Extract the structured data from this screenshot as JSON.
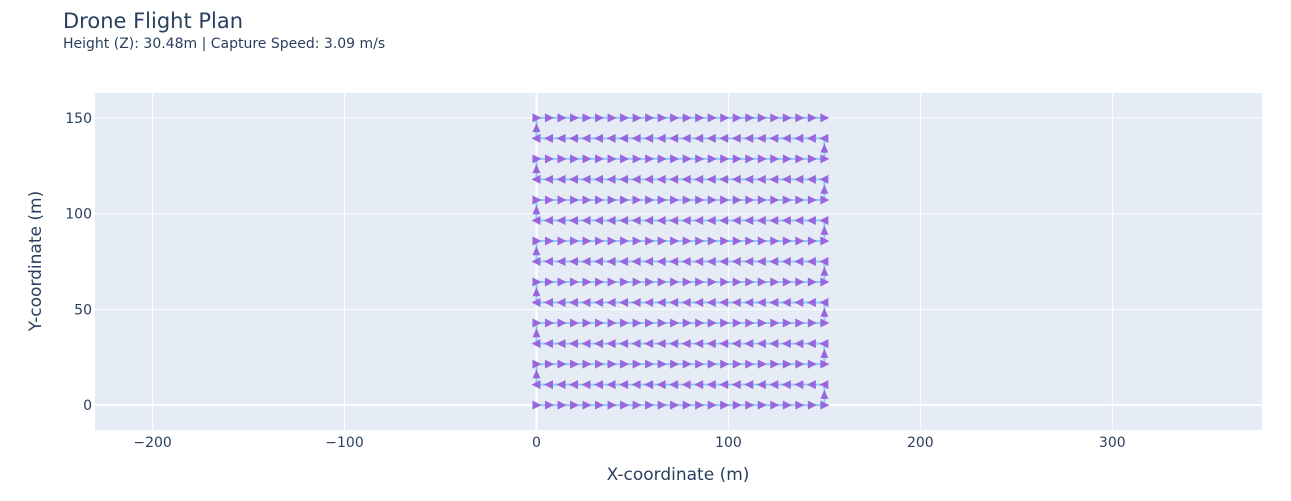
{
  "chart_data": {
    "type": "line",
    "title": "Drone Flight Plan",
    "subtitle": "Height (Z): 30.48m | Capture Speed: 3.09 m/s",
    "xlabel": "X-coordinate (m)",
    "ylabel": "Y-coordinate (m)",
    "xlim": [
      -230,
      378
    ],
    "ylim": [
      -13,
      163
    ],
    "xticks": [
      -200,
      -100,
      0,
      100,
      200,
      300
    ],
    "xtick_labels": [
      "−200",
      "−100",
      "0",
      "100",
      "200",
      "300"
    ],
    "yticks": [
      0,
      50,
      100,
      150
    ],
    "ytick_labels": [
      "0",
      "50",
      "100",
      "150"
    ],
    "grid": true,
    "legend": "none",
    "background": "#e5ecf6",
    "grid_color": "#ffffff",
    "line_color": "#87cefa",
    "marker_color": "#9966dd",
    "marker": "triangle-arrow",
    "path": {
      "x_start": 0,
      "x_end": 150,
      "lane_spacing": 10.71,
      "lanes": 15,
      "x_step": 6.52,
      "first_direction": "east",
      "lane_y": [
        0,
        10.71,
        21.43,
        32.14,
        42.86,
        53.57,
        64.29,
        75,
        85.71,
        96.43,
        107.14,
        117.86,
        128.57,
        139.29,
        150
      ]
    }
  }
}
